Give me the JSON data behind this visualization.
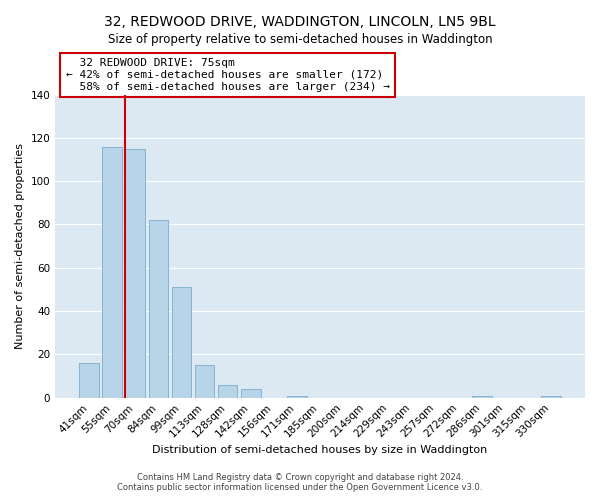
{
  "title": "32, REDWOOD DRIVE, WADDINGTON, LINCOLN, LN5 9BL",
  "subtitle": "Size of property relative to semi-detached houses in Waddington",
  "xlabel": "Distribution of semi-detached houses by size in Waddington",
  "ylabel": "Number of semi-detached properties",
  "footer_line1": "Contains HM Land Registry data © Crown copyright and database right 2024.",
  "footer_line2": "Contains public sector information licensed under the Open Government Licence v3.0.",
  "bar_labels": [
    "41sqm",
    "55sqm",
    "70sqm",
    "84sqm",
    "99sqm",
    "113sqm",
    "128sqm",
    "142sqm",
    "156sqm",
    "171sqm",
    "185sqm",
    "200sqm",
    "214sqm",
    "229sqm",
    "243sqm",
    "257sqm",
    "272sqm",
    "286sqm",
    "301sqm",
    "315sqm",
    "330sqm"
  ],
  "bar_heights": [
    16,
    116,
    115,
    82,
    51,
    15,
    6,
    4,
    0,
    1,
    0,
    0,
    0,
    0,
    0,
    0,
    0,
    1,
    0,
    0,
    1
  ],
  "bar_color": "#b8d4e8",
  "bar_edge_color": "#7aacce",
  "property_line_index": 2,
  "property_label": "32 REDWOOD DRIVE: 75sqm",
  "pct_smaller": 42,
  "pct_larger": 58,
  "n_smaller": 172,
  "n_larger": 234,
  "line_color": "#cc0000",
  "annotation_box_edge_color": "#cc0000",
  "ylim": [
    0,
    140
  ],
  "yticks": [
    0,
    20,
    40,
    60,
    80,
    100,
    120,
    140
  ],
  "bg_color": "#ffffff",
  "plot_bg_color": "#dce9f3",
  "grid_color": "#ffffff",
  "title_fontsize": 10,
  "axis_label_fontsize": 8,
  "tick_fontsize": 7.5,
  "annotation_fontsize": 8,
  "footer_fontsize": 6
}
